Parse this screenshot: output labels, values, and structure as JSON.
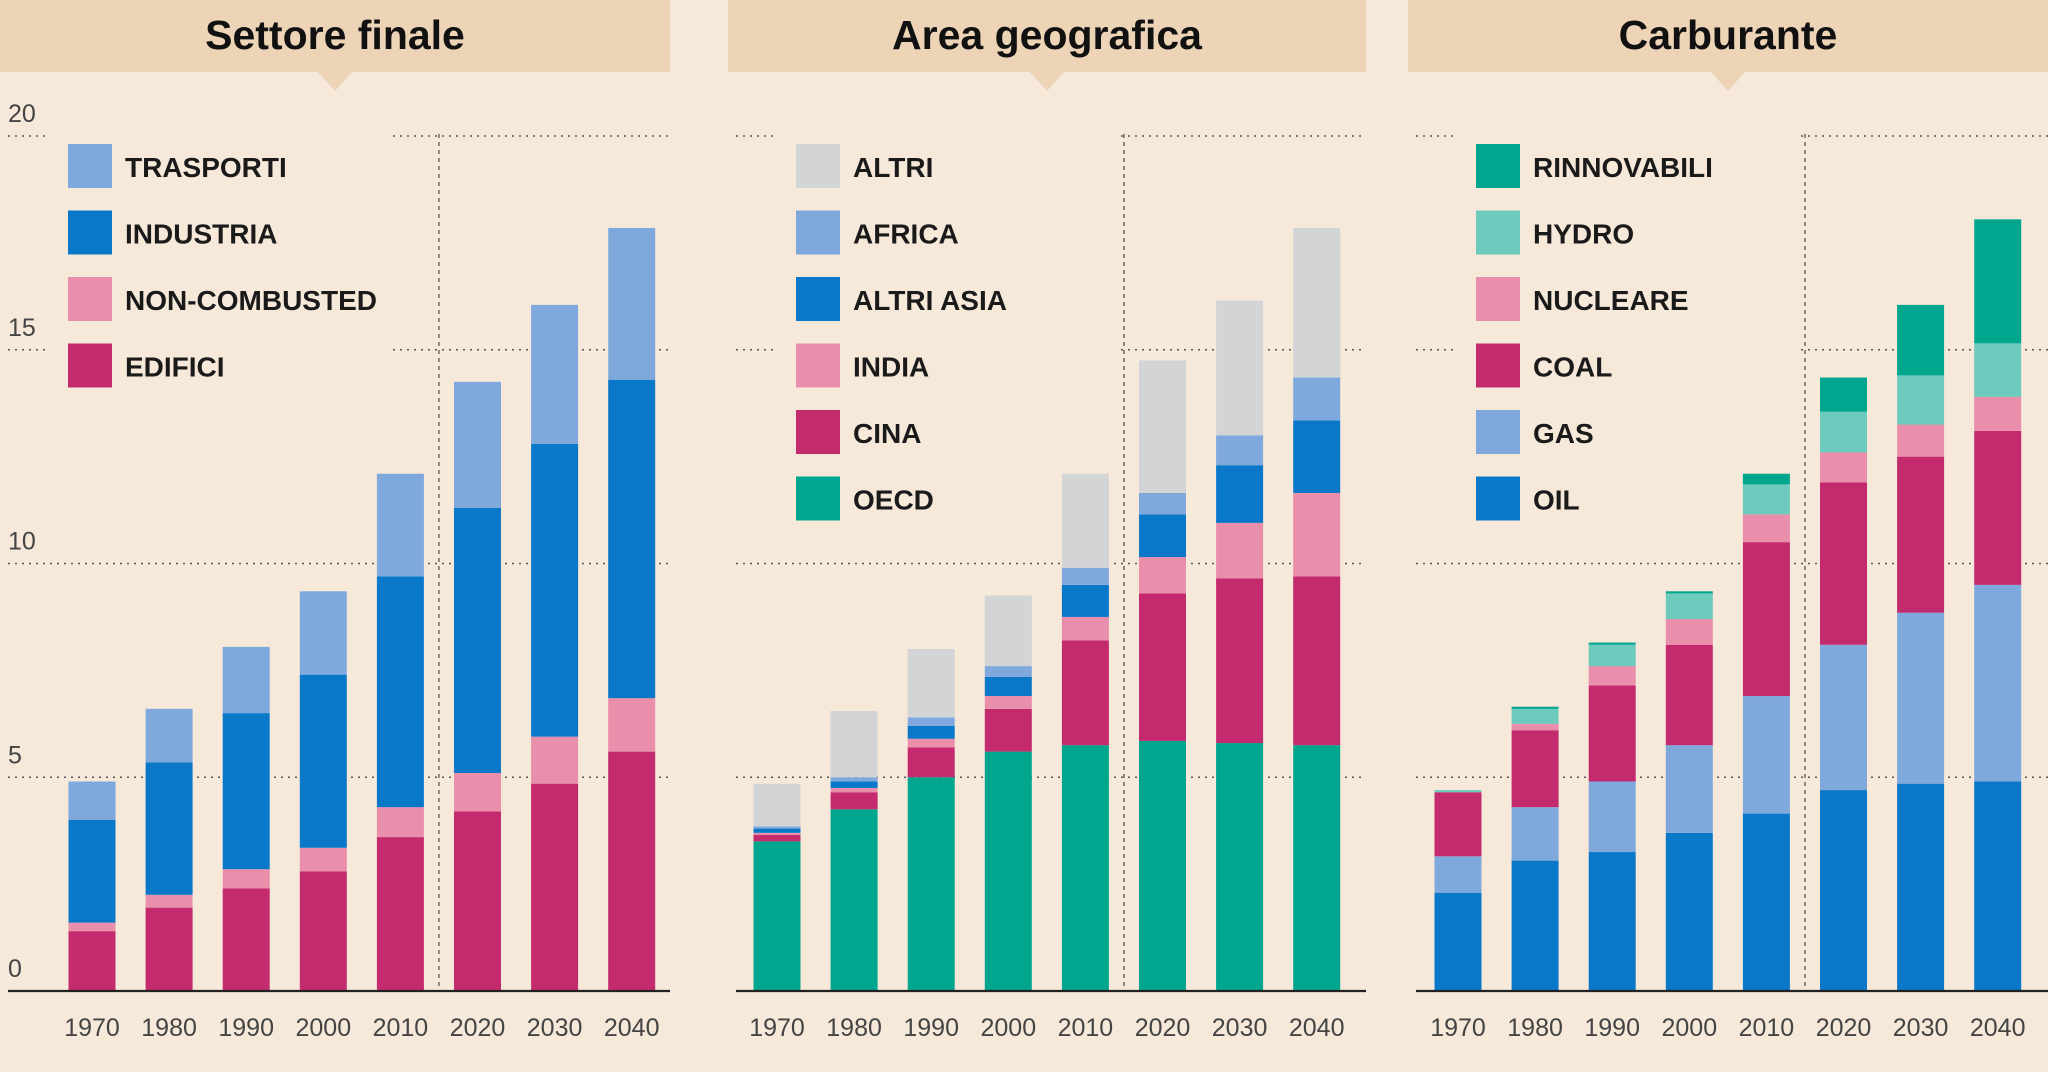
{
  "colors": {
    "background": "#f6e9da",
    "tab": "#edd4b6",
    "grid": "#555555",
    "axis": "#222222"
  },
  "chart_data": [
    {
      "type": "bar",
      "stacked": true,
      "title": "Settore finale",
      "categories": [
        "1970",
        "1980",
        "1990",
        "2000",
        "2010",
        "2020",
        "2030",
        "2040"
      ],
      "y_ticks": [
        "0",
        "5",
        "10",
        "15",
        "20"
      ],
      "ylim": [
        0,
        20
      ],
      "forecast_from": "2020",
      "series": [
        {
          "name": "EDIFICI",
          "color": "#c42b6f",
          "values": [
            1.4,
            1.95,
            2.4,
            2.8,
            3.6,
            4.2,
            4.85,
            5.6
          ]
        },
        {
          "name": "NON-COMBUSTED",
          "color": "#e98fab",
          "values": [
            0.2,
            0.3,
            0.45,
            0.55,
            0.7,
            0.9,
            1.1,
            1.25
          ]
        },
        {
          "name": "INDUSTRIA",
          "color": "#0a78c9",
          "values": [
            2.4,
            3.1,
            3.65,
            4.05,
            5.4,
            6.2,
            6.85,
            7.45
          ]
        },
        {
          "name": "TRASPORTI",
          "color": "#7fa9dc",
          "values": [
            0.9,
            1.25,
            1.55,
            1.95,
            2.4,
            2.95,
            3.25,
            3.55
          ]
        }
      ]
    },
    {
      "type": "bar",
      "stacked": true,
      "title": "Area geografica",
      "categories": [
        "1970",
        "1980",
        "1990",
        "2000",
        "2010",
        "2020",
        "2030",
        "2040"
      ],
      "y_ticks": [],
      "ylim": [
        0,
        20
      ],
      "forecast_from": "2020",
      "series": [
        {
          "name": "OECD",
          "color": "#00a68d",
          "values": [
            3.5,
            4.25,
            5.0,
            5.6,
            5.75,
            5.85,
            5.8,
            5.75
          ]
        },
        {
          "name": "CINA",
          "color": "#c42b6f",
          "values": [
            0.15,
            0.4,
            0.7,
            1.0,
            2.45,
            3.45,
            3.85,
            3.95
          ]
        },
        {
          "name": "INDIA",
          "color": "#e98fab",
          "values": [
            0.05,
            0.1,
            0.2,
            0.3,
            0.55,
            0.85,
            1.3,
            1.95
          ]
        },
        {
          "name": "ALTRI ASIA",
          "color": "#0a78c9",
          "values": [
            0.1,
            0.15,
            0.3,
            0.45,
            0.75,
            1.0,
            1.35,
            1.7
          ]
        },
        {
          "name": "AFRICA",
          "color": "#7fa9dc",
          "values": [
            0.05,
            0.1,
            0.2,
            0.25,
            0.4,
            0.5,
            0.7,
            1.0
          ]
        },
        {
          "name": "ALTRI",
          "color": "#d3d4d6",
          "values": [
            1.0,
            1.55,
            1.6,
            1.65,
            2.2,
            3.1,
            3.15,
            3.5
          ]
        }
      ]
    },
    {
      "type": "bar",
      "stacked": true,
      "title": "Carburante",
      "categories": [
        "1970",
        "1980",
        "1990",
        "2000",
        "2010",
        "2020",
        "2030",
        "2040"
      ],
      "y_ticks": [],
      "ylim": [
        0,
        20
      ],
      "forecast_from": "2020",
      "series": [
        {
          "name": "OIL",
          "color": "#0a78c9",
          "values": [
            2.3,
            3.05,
            3.25,
            3.7,
            4.15,
            4.7,
            4.85,
            4.9
          ]
        },
        {
          "name": "GAS",
          "color": "#7fa9dc",
          "values": [
            0.85,
            1.25,
            1.65,
            2.05,
            2.75,
            3.4,
            4.0,
            4.6
          ]
        },
        {
          "name": "COAL",
          "color": "#c42b6f",
          "values": [
            1.5,
            1.8,
            2.25,
            2.35,
            3.6,
            3.8,
            3.65,
            3.6
          ]
        },
        {
          "name": "NUCLEARE",
          "color": "#e98fab",
          "values": [
            0.0,
            0.15,
            0.45,
            0.6,
            0.65,
            0.7,
            0.75,
            0.8
          ]
        },
        {
          "name": "HYDRO",
          "color": "#6ccbbd",
          "values": [
            0.05,
            0.35,
            0.5,
            0.6,
            0.7,
            0.95,
            1.15,
            1.25
          ]
        },
        {
          "name": "RINNOVABILI",
          "color": "#00a68d",
          "values": [
            0.0,
            0.05,
            0.05,
            0.05,
            0.25,
            0.8,
            1.65,
            2.9
          ]
        }
      ]
    }
  ]
}
